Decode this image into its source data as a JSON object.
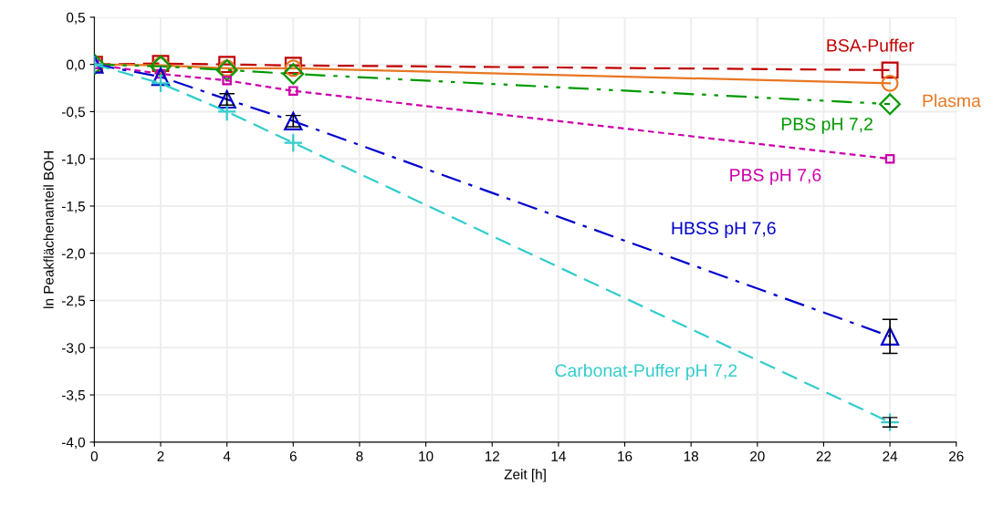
{
  "chart_data": {
    "type": "line",
    "xlabel": "Zeit [h]",
    "ylabel": "ln Peakflächenanteil BOH",
    "x": [
      0,
      2,
      4,
      6,
      24
    ],
    "xlim": [
      0,
      26
    ],
    "xticks": [
      0,
      2,
      4,
      6,
      8,
      10,
      12,
      14,
      16,
      18,
      20,
      22,
      24,
      26
    ],
    "ylim": [
      -4.0,
      0.5
    ],
    "yticks": [
      {
        "value": 0.5,
        "label": "0,5"
      },
      {
        "value": 0.0,
        "label": "0,0"
      },
      {
        "value": -0.5,
        "label": "-0,5"
      },
      {
        "value": -1.0,
        "label": "-1,0"
      },
      {
        "value": -1.5,
        "label": "-1,5"
      },
      {
        "value": -2.0,
        "label": "-2,0"
      },
      {
        "value": -2.5,
        "label": "-2,5"
      },
      {
        "value": -3.0,
        "label": "-3,0"
      },
      {
        "value": -3.5,
        "label": "-3,5"
      },
      {
        "value": -4.0,
        "label": "-4,0"
      }
    ],
    "grid": true,
    "legend": false,
    "series": [
      {
        "name": "BSA-Puffer",
        "color": "#c00000",
        "marker": "square",
        "line_style": "dashed",
        "values": [
          0,
          0.01,
          0.0,
          -0.01,
          -0.06
        ]
      },
      {
        "name": "Plasma",
        "color": "#e87722",
        "marker": "circle",
        "line_style": "solid",
        "values": [
          0,
          -0.01,
          -0.04,
          -0.04,
          -0.2
        ]
      },
      {
        "name": "PBS pH 7,2",
        "color": "#009900",
        "marker": "diamond",
        "line_style": "dashdotdot",
        "values": [
          0,
          -0.02,
          -0.06,
          -0.1,
          -0.42
        ]
      },
      {
        "name": "PBS pH 7,6",
        "color": "#cc00aa",
        "marker": "square",
        "line_style": "dotted",
        "values": [
          0,
          -0.1,
          -0.17,
          -0.28,
          -1.0
        ]
      },
      {
        "name": "HBSS pH 7,6",
        "color": "#0000cc",
        "marker": "triangle",
        "line_style": "dashdot",
        "values": [
          0,
          -0.13,
          -0.37,
          -0.6,
          -2.88
        ],
        "errors": [
          null,
          null,
          0.06,
          0.06,
          0.18
        ]
      },
      {
        "name": "Carbonat-Puffer pH 7,2",
        "color": "#33cccc",
        "marker": "cross",
        "line_style": "dashed",
        "values": [
          0,
          -0.2,
          -0.5,
          -0.83,
          -3.79
        ],
        "errors": [
          null,
          null,
          null,
          null,
          0.05
        ]
      }
    ]
  }
}
